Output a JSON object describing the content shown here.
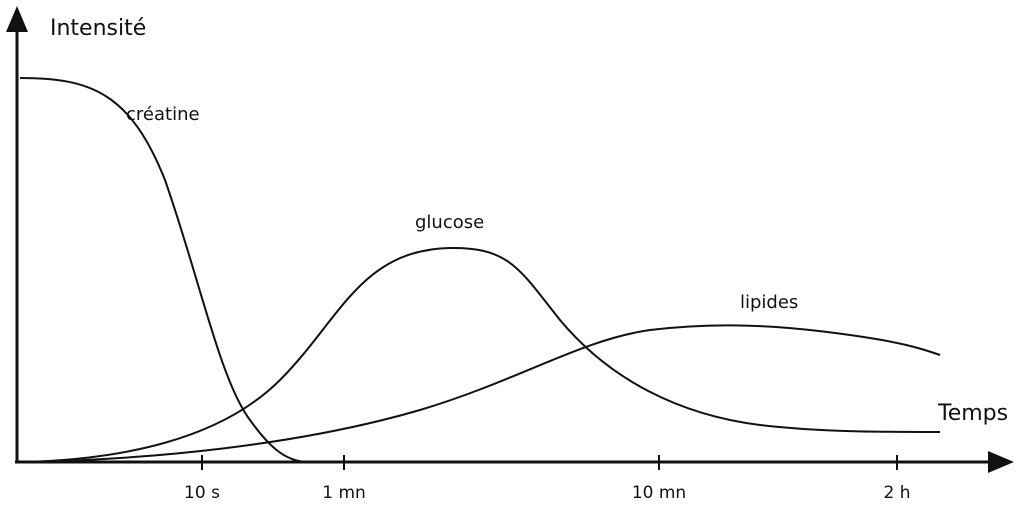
{
  "axes": {
    "y_label": "Intensité",
    "x_label": "Temps",
    "x_ticks": [
      "10 s",
      "1 mn",
      "10 mn",
      "2 h"
    ]
  },
  "curves": [
    {
      "label": "créatine"
    },
    {
      "label": "glucose"
    },
    {
      "label": "lipides"
    }
  ]
}
